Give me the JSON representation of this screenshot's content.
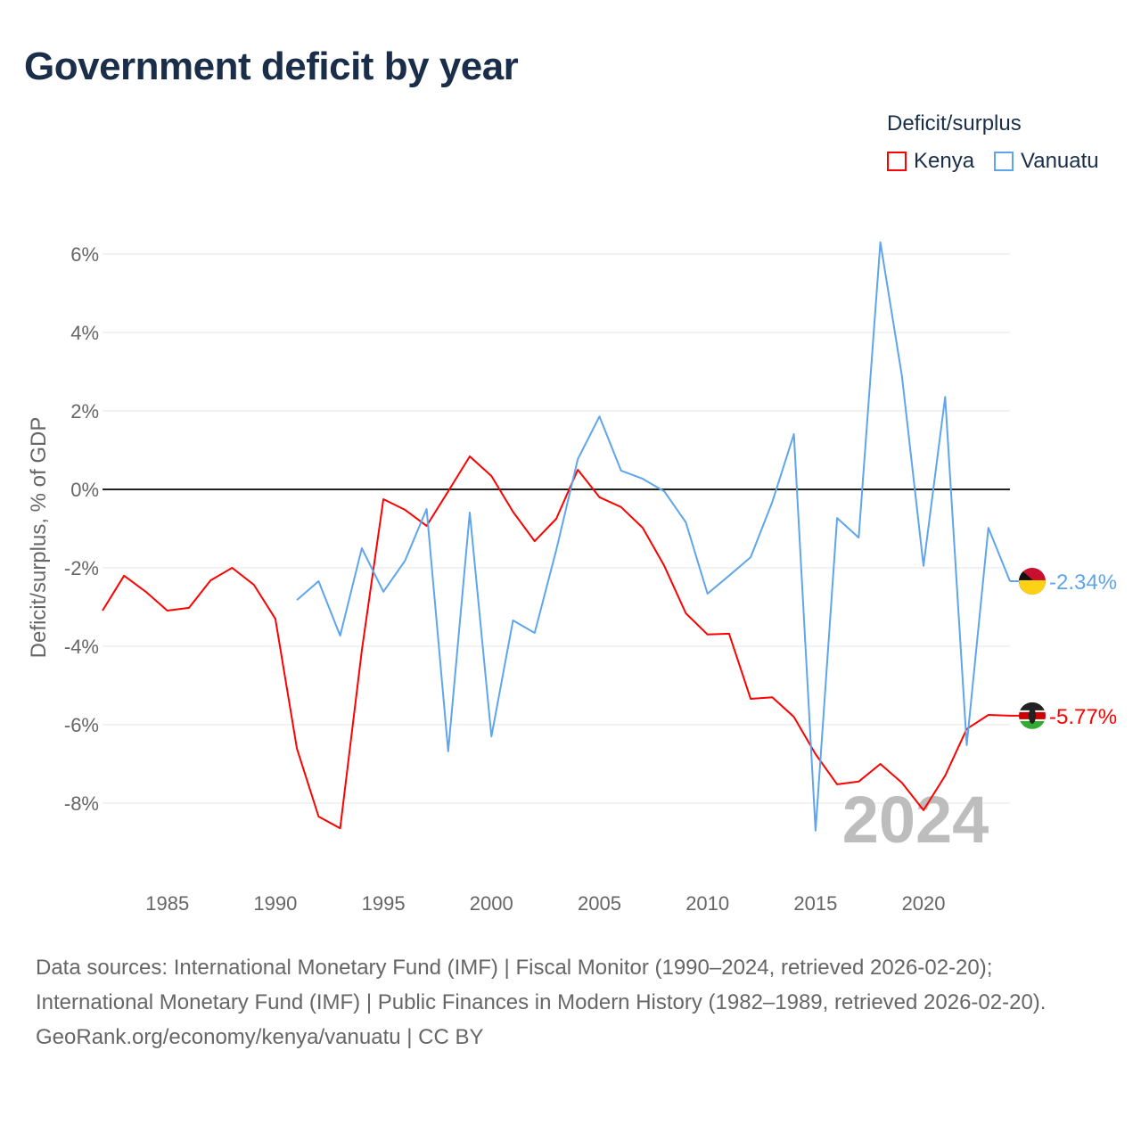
{
  "title": "Government deficit by year",
  "legend": {
    "title": "Deficit/surplus",
    "items": [
      {
        "name": "Kenya",
        "color": "#ff0000"
      },
      {
        "name": "Vanuatu",
        "color": "#5ea5ec"
      }
    ]
  },
  "year_watermark": "2024",
  "sources": {
    "line1": "Data sources: International Monetary Fund (IMF) | Fiscal Monitor (1990–2024, retrieved 2026-02-20); International Monetary Fund (IMF) | Public Finances in Modern History (1982–1989, retrieved 2026-02-20).",
    "line2": "GeoRank.org/economy/kenya/vanuatu | CC BY"
  },
  "chart_data": {
    "type": "line",
    "title": "Government deficit by year",
    "xlabel": "",
    "ylabel": "Deficit/surplus, % of GDP",
    "xlim": [
      1982,
      2024
    ],
    "ylim": [
      -9.5,
      6.5
    ],
    "x_ticks": [
      1985,
      1990,
      1995,
      2000,
      2005,
      2010,
      2015,
      2020
    ],
    "y_ticks": [
      6,
      4,
      2,
      0,
      -2,
      -4,
      -6,
      -8
    ],
    "y_tick_labels": [
      "6%",
      "4%",
      "2%",
      "0%",
      "-2%",
      "-4%",
      "-6%",
      "-8%"
    ],
    "grid": true,
    "legend_position": "top-right",
    "series": [
      {
        "name": "Kenya",
        "color": "#ff0000",
        "end_label": "-5.77%",
        "x": [
          1982,
          1983,
          1984,
          1985,
          1986,
          1987,
          1988,
          1989,
          1990,
          1991,
          1992,
          1993,
          1994,
          1995,
          1996,
          1997,
          1998,
          1999,
          2000,
          2001,
          2002,
          2003,
          2004,
          2005,
          2006,
          2007,
          2008,
          2009,
          2010,
          2011,
          2012,
          2013,
          2014,
          2015,
          2016,
          2017,
          2018,
          2019,
          2020,
          2021,
          2022,
          2023,
          2024
        ],
        "y": [
          -3.09,
          -2.2,
          -2.61,
          -3.09,
          -3.02,
          -2.32,
          -2.0,
          -2.43,
          -3.3,
          -6.61,
          -8.34,
          -8.64,
          -4.11,
          -0.25,
          -0.52,
          -0.93,
          -0.05,
          0.84,
          0.34,
          -0.57,
          -1.32,
          -0.75,
          0.5,
          -0.2,
          -0.45,
          -0.98,
          -1.95,
          -3.16,
          -3.7,
          -3.68,
          -5.34,
          -5.3,
          -5.8,
          -6.75,
          -7.52,
          -7.45,
          -7.0,
          -7.48,
          -8.18,
          -7.3,
          -6.11,
          -5.75,
          -5.77
        ]
      },
      {
        "name": "Vanuatu",
        "color": "#5ea5ec",
        "end_label": "-2.34%",
        "x": [
          1991,
          1992,
          1993,
          1994,
          1995,
          1996,
          1997,
          1998,
          1999,
          2000,
          2001,
          2002,
          2003,
          2004,
          2005,
          2006,
          2007,
          2008,
          2009,
          2010,
          2011,
          2012,
          2013,
          2014,
          2015,
          2016,
          2017,
          2018,
          2019,
          2020,
          2021,
          2022,
          2023,
          2024
        ],
        "y": [
          -2.82,
          -2.34,
          -3.73,
          -1.5,
          -2.61,
          -1.82,
          -0.5,
          -6.68,
          -0.59,
          -6.3,
          -3.34,
          -3.66,
          -1.55,
          0.77,
          1.86,
          0.48,
          0.27,
          -0.05,
          -0.84,
          -2.66,
          -2.2,
          -1.73,
          -0.32,
          1.41,
          -8.7,
          -0.73,
          -1.23,
          6.3,
          2.89,
          -1.95,
          2.36,
          -6.52,
          -0.98,
          -2.34
        ]
      }
    ]
  }
}
